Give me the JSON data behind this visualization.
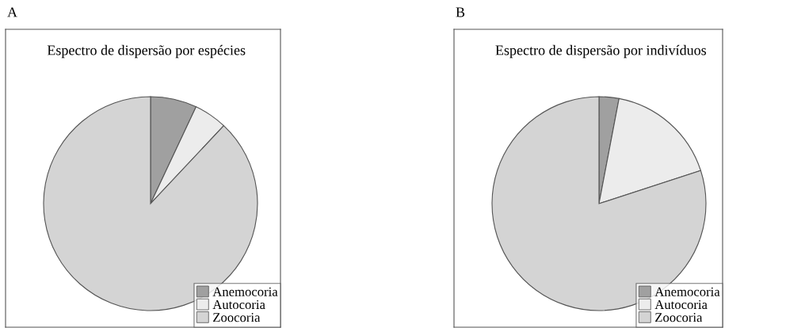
{
  "chart_data": [
    {
      "type": "pie",
      "title": "Espectro de dispersão por espécies",
      "annotations": [
        "A"
      ],
      "categories": [
        "Anemocoria",
        "Autocoria",
        "Zoocoria"
      ],
      "values": [
        7,
        5,
        88
      ],
      "colors": [
        "#a0a0a0",
        "#ececec",
        "#d4d4d4"
      ],
      "legend": "bottom right"
    },
    {
      "type": "pie",
      "title": "Espectro de dispersão por indivíduos",
      "annotations": [
        "B"
      ],
      "categories": [
        "Anemocoria",
        "Autocoria",
        "Zoocoria"
      ],
      "values": [
        3,
        17,
        80
      ],
      "colors": [
        "#a0a0a0",
        "#ececec",
        "#d4d4d4"
      ],
      "legend": "bottom right"
    }
  ]
}
